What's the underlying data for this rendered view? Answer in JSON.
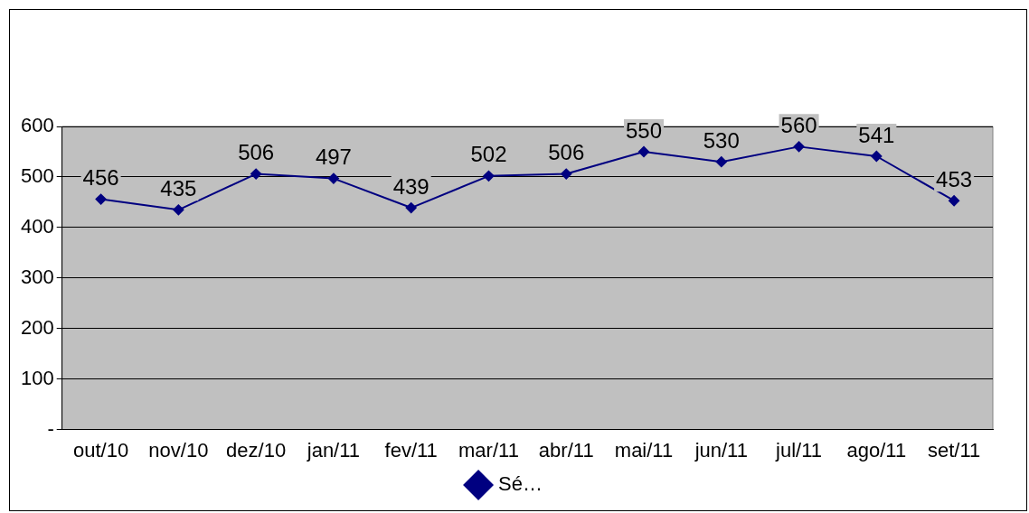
{
  "chart_data": {
    "type": "line",
    "categories": [
      "out/10",
      "nov/10",
      "dez/10",
      "jan/11",
      "fev/11",
      "mar/11",
      "abr/11",
      "mai/11",
      "jun/11",
      "jul/11",
      "ago/11",
      "set/11"
    ],
    "series": [
      {
        "name": "Sé…",
        "color": "#000080",
        "values": [
          456,
          435,
          506,
          497,
          439,
          502,
          506,
          550,
          530,
          560,
          541,
          453
        ]
      }
    ],
    "ylim": [
      0,
      600
    ],
    "yticks": [
      {
        "value": 0,
        "label": "-"
      },
      100,
      200,
      300,
      400,
      500,
      600
    ],
    "grid": "y",
    "legend": "bottom",
    "marker": "diamond",
    "line_style": "solid",
    "data_labels": true
  }
}
